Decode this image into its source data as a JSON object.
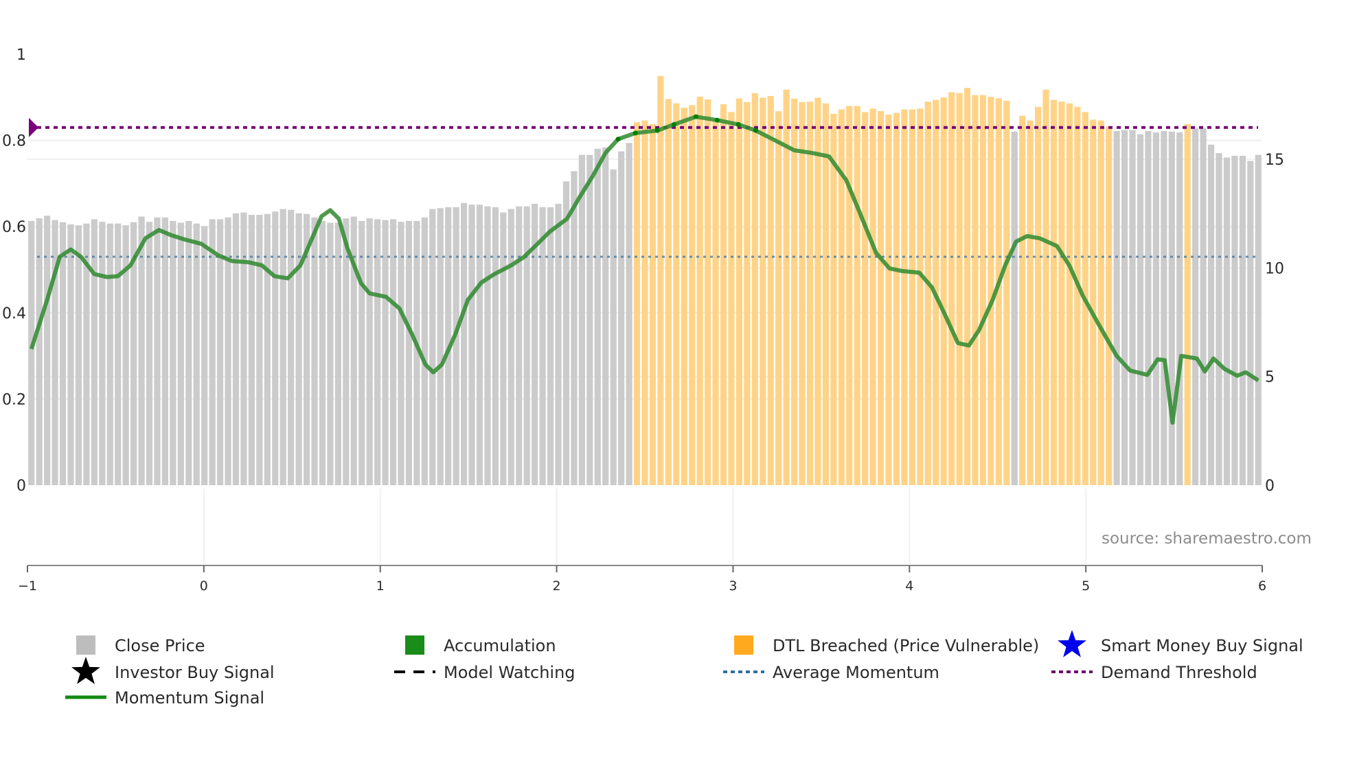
{
  "chart_data": {
    "type": "bar",
    "source_note": "source: sharemaestro.com",
    "left_axis": {
      "ticks": [
        "0",
        "0.2",
        "0.4",
        "0.6",
        "0.8",
        "1"
      ],
      "range": [
        0,
        1
      ]
    },
    "right_axis": {
      "ticks": [
        "0",
        "5",
        "10",
        "15"
      ],
      "range": [
        0,
        15
      ]
    },
    "x_axis": {
      "ticks": [
        "−1",
        "0",
        "1",
        "2",
        "3",
        "4",
        "5",
        "6"
      ],
      "range": [
        -1,
        6
      ]
    },
    "demand_threshold": 0.83,
    "average_momentum": 0.53,
    "close_price": {
      "values": [
        12.16,
        12.28,
        12.4,
        12.2,
        12.1,
        12.0,
        11.96,
        12.04,
        12.24,
        12.12,
        12.04,
        12.04,
        11.96,
        12.1,
        12.36,
        12.12,
        12.32,
        12.32,
        12.16,
        12.08,
        12.16,
        12.04,
        11.92,
        12.24,
        12.24,
        12.32,
        12.51,
        12.55,
        12.44,
        12.44,
        12.48,
        12.59,
        12.71,
        12.67,
        12.51,
        12.48,
        12.32,
        12.16,
        12.08,
        12.08,
        12.28,
        12.36,
        12.16,
        12.28,
        12.24,
        12.2,
        12.24,
        12.12,
        12.16,
        12.16,
        12.32,
        12.71,
        12.75,
        12.79,
        12.79,
        12.99,
        12.91,
        12.91,
        12.83,
        12.79,
        12.55,
        12.71,
        12.83,
        12.83,
        12.95,
        12.79,
        12.79,
        12.95,
        13.98,
        14.45,
        15.2,
        15.2,
        15.48,
        15.55,
        14.53,
        15.36,
        15.75,
        16.7,
        16.78,
        16.62,
        18.83,
        17.77,
        17.57,
        17.37,
        17.49,
        17.88,
        17.75,
        16.82,
        17.53,
        17.17,
        17.79,
        17.63,
        18.04,
        17.83,
        17.91,
        17.21,
        18.2,
        17.79,
        17.63,
        17.65,
        17.83,
        17.57,
        17.09,
        17.29,
        17.45,
        17.45,
        17.17,
        17.33,
        17.21,
        17.05,
        17.13,
        17.29,
        17.29,
        17.33,
        17.65,
        17.73,
        17.84,
        18.08,
        18.04,
        18.28,
        17.95,
        17.95,
        17.87,
        17.8,
        17.69,
        16.27,
        17.0,
        16.78,
        17.41,
        18.2,
        17.73,
        17.65,
        17.57,
        17.41,
        17.17,
        16.82,
        16.78,
        16.5,
        16.3,
        16.34,
        16.34,
        16.15,
        16.3,
        16.23,
        16.3,
        16.27,
        16.23,
        16.62,
        16.42,
        16.42,
        15.67,
        15.28,
        15.08,
        15.16,
        15.16,
        14.92,
        15.2
      ],
      "dtl_breached_ranges": [
        [
          77,
          124
        ],
        [
          126,
          137
        ],
        [
          147,
          147
        ]
      ]
    },
    "momentum_signal": [
      [
        0,
        0.316
      ],
      [
        2,
        0.43
      ],
      [
        3.6,
        0.53
      ],
      [
        5,
        0.547
      ],
      [
        6.3,
        0.53
      ],
      [
        8,
        0.49
      ],
      [
        9.6,
        0.483
      ],
      [
        11,
        0.485
      ],
      [
        12.6,
        0.51
      ],
      [
        14.5,
        0.573
      ],
      [
        16.2,
        0.592
      ],
      [
        17.8,
        0.58
      ],
      [
        19.5,
        0.57
      ],
      [
        21.6,
        0.56
      ],
      [
        23.8,
        0.533
      ],
      [
        25.5,
        0.52
      ],
      [
        27.7,
        0.517
      ],
      [
        29.3,
        0.51
      ],
      [
        30.9,
        0.485
      ],
      [
        32.6,
        0.48
      ],
      [
        34.2,
        0.51
      ],
      [
        35.5,
        0.565
      ],
      [
        36.9,
        0.624
      ],
      [
        38,
        0.638
      ],
      [
        39.1,
        0.618
      ],
      [
        40.2,
        0.549
      ],
      [
        41.9,
        0.469
      ],
      [
        43,
        0.445
      ],
      [
        45.1,
        0.437
      ],
      [
        46.8,
        0.41
      ],
      [
        48.4,
        0.35
      ],
      [
        50.1,
        0.28
      ],
      [
        51.1,
        0.262
      ],
      [
        52.2,
        0.28
      ],
      [
        53.9,
        0.35
      ],
      [
        55.5,
        0.43
      ],
      [
        57.2,
        0.47
      ],
      [
        58.8,
        0.489
      ],
      [
        61,
        0.51
      ],
      [
        62.6,
        0.529
      ],
      [
        64.3,
        0.559
      ],
      [
        65.9,
        0.588
      ],
      [
        68.1,
        0.618
      ],
      [
        69.7,
        0.668
      ],
      [
        71.4,
        0.718
      ],
      [
        73,
        0.771
      ],
      [
        74.6,
        0.803
      ],
      [
        76.8,
        0.817
      ],
      [
        79.6,
        0.823
      ],
      [
        81.7,
        0.837
      ],
      [
        84.5,
        0.855
      ],
      [
        87.2,
        0.847
      ],
      [
        89.9,
        0.837
      ],
      [
        92.1,
        0.823
      ],
      [
        94.9,
        0.797
      ],
      [
        97,
        0.777
      ],
      [
        99.2,
        0.771
      ],
      [
        101.4,
        0.763
      ],
      [
        103.6,
        0.708
      ],
      [
        105.2,
        0.638
      ],
      [
        107.4,
        0.539
      ],
      [
        109.1,
        0.503
      ],
      [
        110.7,
        0.497
      ],
      [
        112.9,
        0.493
      ],
      [
        114.5,
        0.459
      ],
      [
        116.2,
        0.394
      ],
      [
        117.8,
        0.33
      ],
      [
        119.2,
        0.324
      ],
      [
        120.5,
        0.36
      ],
      [
        122.2,
        0.429
      ],
      [
        123.8,
        0.509
      ],
      [
        125.2,
        0.565
      ],
      [
        126.6,
        0.578
      ],
      [
        128.2,
        0.573
      ],
      [
        130.4,
        0.555
      ],
      [
        132,
        0.509
      ],
      [
        133.7,
        0.439
      ],
      [
        135.8,
        0.37
      ],
      [
        138,
        0.3
      ],
      [
        139.7,
        0.266
      ],
      [
        141.9,
        0.256
      ],
      [
        143.2,
        0.292
      ],
      [
        144.1,
        0.29
      ],
      [
        145.1,
        0.145
      ],
      [
        146.2,
        0.3
      ],
      [
        148.2,
        0.294
      ],
      [
        149.2,
        0.264
      ],
      [
        150.3,
        0.294
      ],
      [
        151.7,
        0.27
      ],
      [
        153.3,
        0.254
      ],
      [
        154.4,
        0.262
      ],
      [
        156,
        0.243
      ]
    ],
    "legend": [
      {
        "label": "Close Price",
        "icon": "square",
        "color": "#bdbdbd"
      },
      {
        "label": "Accumulation",
        "icon": "square",
        "color": "#1a8c1a"
      },
      {
        "label": "DTL Breached (Price Vulnerable)",
        "icon": "square",
        "color": "#ffa91f"
      },
      {
        "label": "Smart Money Buy Signal",
        "icon": "star",
        "color": "#0000ee"
      },
      {
        "label": "Investor Buy Signal",
        "icon": "star",
        "color": "#000000"
      },
      {
        "label": "Model Watching",
        "icon": "dash",
        "color": "#000000"
      },
      {
        "label": "Average Momentum",
        "icon": "dot",
        "color": "#2e6f9e"
      },
      {
        "label": "Demand Threshold",
        "icon": "dot",
        "color": "#6b006b"
      },
      {
        "label": "Momentum Signal",
        "icon": "line",
        "color": "#138a13"
      }
    ],
    "colors": {
      "gray_bar": "#cbcbcb",
      "orange_bar": "#ffd387",
      "momentum": "#2f8a2f",
      "threshold": "#750075",
      "avg": "#4a7aa0"
    }
  }
}
